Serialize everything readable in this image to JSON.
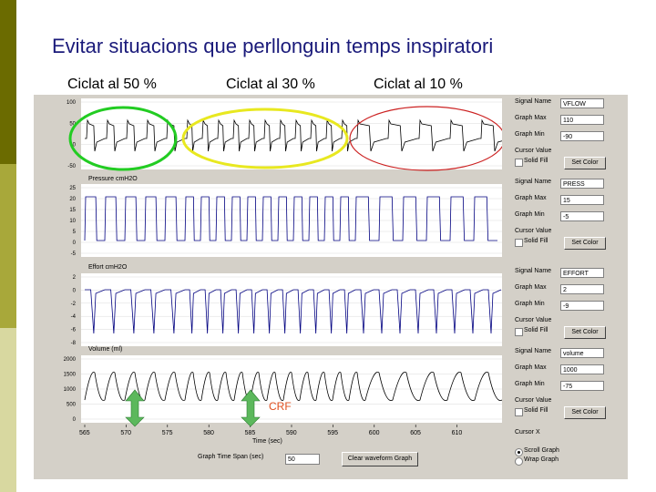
{
  "slide": {
    "title": "Evitar situacions que perllonguin temps inspiratori",
    "labels": [
      "Ciclat al 50 %",
      "Ciclat al 30 %",
      "Ciclat al 10 %"
    ]
  },
  "graphs": [
    {
      "title": "",
      "y_ticks": [
        "100",
        "50",
        "0",
        "-50"
      ]
    },
    {
      "title": "Pressure cmH2O",
      "y_ticks": [
        "25",
        "20",
        "15",
        "10",
        "5",
        "0",
        "-5"
      ]
    },
    {
      "title": "Effort cmH2O",
      "y_ticks": [
        "2",
        "0",
        "-2",
        "-4",
        "-6",
        "-8"
      ]
    },
    {
      "title": "Volume (ml)",
      "y_ticks": [
        "2000",
        "1500",
        "1000",
        "500",
        "0"
      ]
    }
  ],
  "x_axis": {
    "ticks": [
      "565",
      "570",
      "575",
      "580",
      "585",
      "590",
      "595",
      "600",
      "605",
      "610"
    ],
    "label": "Time (sec)"
  },
  "annotation": {
    "frc_label": "CRF"
  },
  "side_panels": [
    {
      "signal_label": "Signal Name",
      "signal_value": "VFLOW",
      "max_label": "Graph Max",
      "max_value": "110",
      "min_label": "Graph Min",
      "min_value": "-90",
      "cursor_label": "Cursor Value",
      "solid_fill": "Solid Fill",
      "set_color": "Set Color"
    },
    {
      "signal_label": "Signal Name",
      "signal_value": "PRESS",
      "max_label": "Graph Max",
      "max_value": "15",
      "min_label": "Graph Min",
      "min_value": "-5",
      "cursor_label": "Cursor Value",
      "solid_fill": "Solid Fill",
      "set_color": "Set Color"
    },
    {
      "signal_label": "Signal Name",
      "signal_value": "EFFORT",
      "max_label": "Graph Max",
      "max_value": "2",
      "min_label": "Graph Min",
      "min_value": "-9",
      "cursor_label": "Cursor Value",
      "solid_fill": "Solid Fill",
      "set_color": "Set Color"
    },
    {
      "signal_label": "Signal Name",
      "signal_value": "volume",
      "max_label": "Graph Max",
      "max_value": "1000",
      "min_label": "Graph Min",
      "min_value": "-75",
      "cursor_label": "Cursor Value",
      "solid_fill": "Solid Fill",
      "set_color": "Set Color"
    }
  ],
  "cursor_x_label": "Cursor X",
  "scroll_graph_label": "Scroll Graph",
  "wrap_graph_label": "Wrap Graph",
  "time_span_label": "Graph Time Span (sec)",
  "time_span_value": "50",
  "clear_button_label": "Clear waveform Graph",
  "colors": {
    "circle_green": "#22cc22",
    "circle_yellow": "#e8e820",
    "circle_red": "#cc2222",
    "trace": "#000080",
    "arrow": "#5cb85c"
  }
}
